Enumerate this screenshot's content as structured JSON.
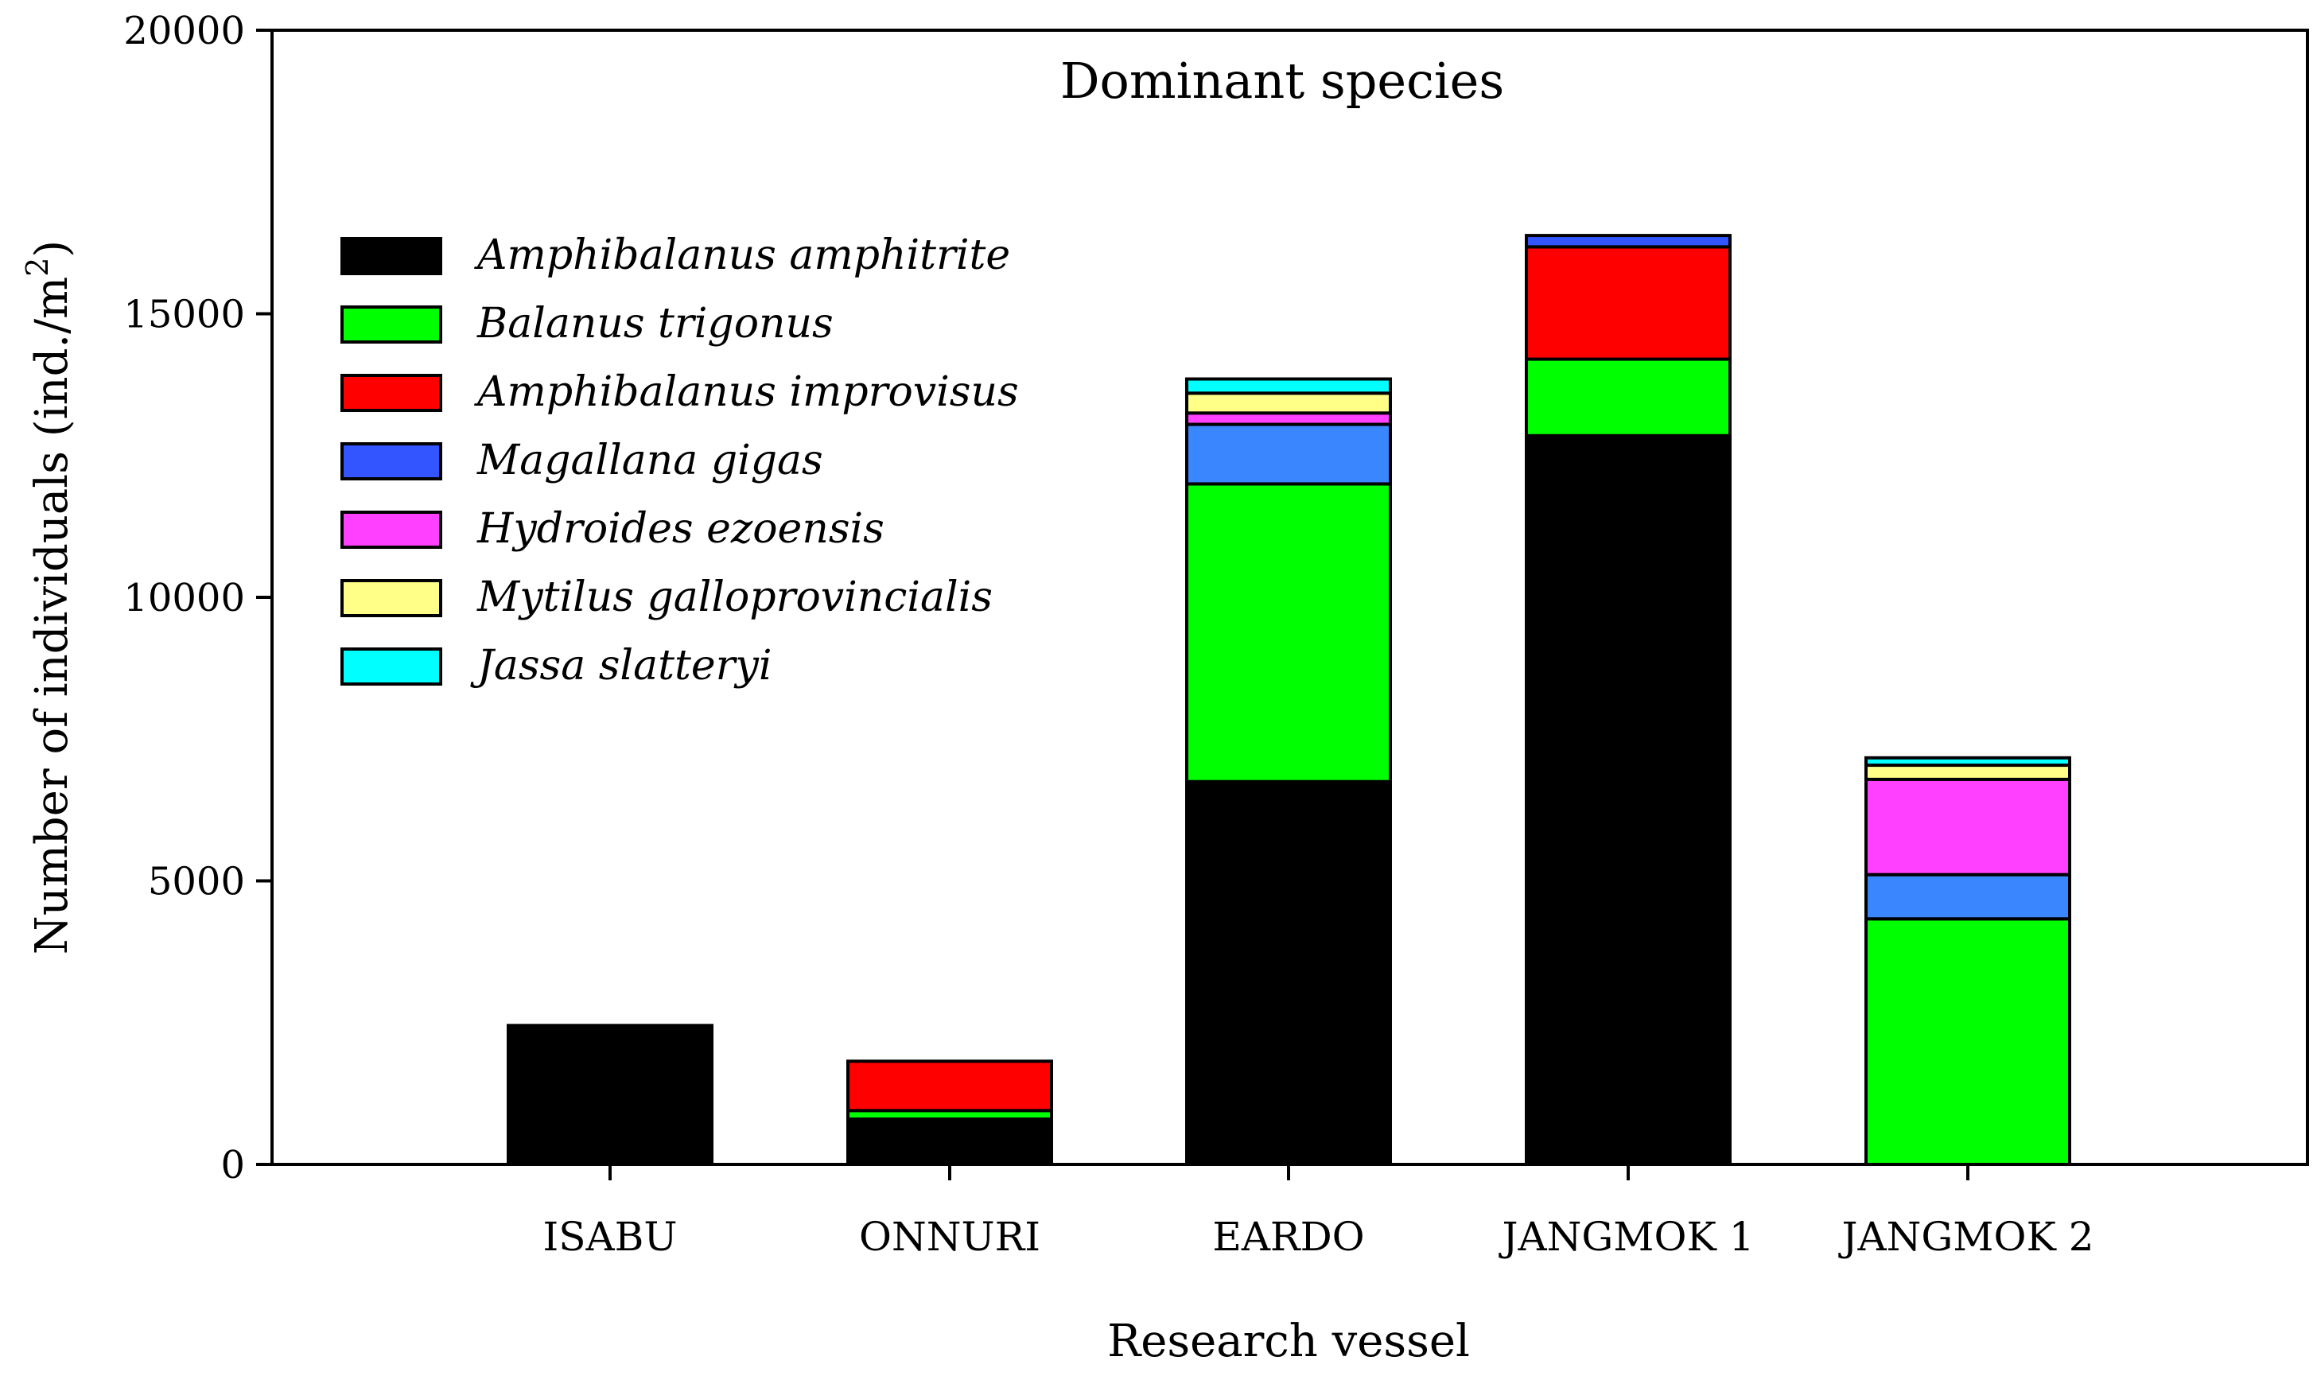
{
  "chart_data": {
    "type": "bar",
    "stacked": true,
    "title": "Dominant species",
    "xlabel": "Research vessel",
    "ylabel": "Number of individuals (ind./m",
    "ylabel_superscript": "2",
    "ylabel_suffix": ")",
    "ylim": [
      0,
      20000
    ],
    "yticks": [
      0,
      5000,
      10000,
      15000,
      20000
    ],
    "ytick_labels": [
      "0",
      "5000",
      "10000",
      "15000",
      "20000"
    ],
    "categories": [
      "ISABU",
      "ONNURI",
      "EARDO",
      "JANGMOK 1",
      "JANGMOK 2"
    ],
    "legend_position": "upper-left",
    "series": [
      {
        "name": "Amphibalanus amphitrite",
        "color": "#000000",
        "values": [
          2450,
          800,
          6750,
          12850,
          0
        ]
      },
      {
        "name": "Balanus trigonus",
        "color": "#00ff00",
        "values": [
          0,
          150,
          5250,
          1350,
          4330
        ]
      },
      {
        "name": "Amphibalanus improvisus",
        "color": "#ff0000",
        "values": [
          0,
          870,
          0,
          1980,
          0
        ]
      },
      {
        "name": "Magallana gigas",
        "color": "#3355ff",
        "values": [
          0,
          0,
          0,
          200,
          0
        ]
      },
      {
        "name": "Blue unlabeled segment",
        "color": "#3a86ff",
        "values": [
          0,
          0,
          1050,
          0,
          780
        ],
        "in_legend": false
      },
      {
        "name": "Hydroides ezoensis",
        "color": "#ff40ff",
        "values": [
          0,
          0,
          200,
          0,
          1680
        ]
      },
      {
        "name": "Mytilus galloprovincialis",
        "color": "#ffff88",
        "values": [
          0,
          0,
          350,
          0,
          250
        ]
      },
      {
        "name": "Jassa slatteryi",
        "color": "#00ffff",
        "values": [
          0,
          0,
          250,
          0,
          130
        ]
      }
    ]
  }
}
